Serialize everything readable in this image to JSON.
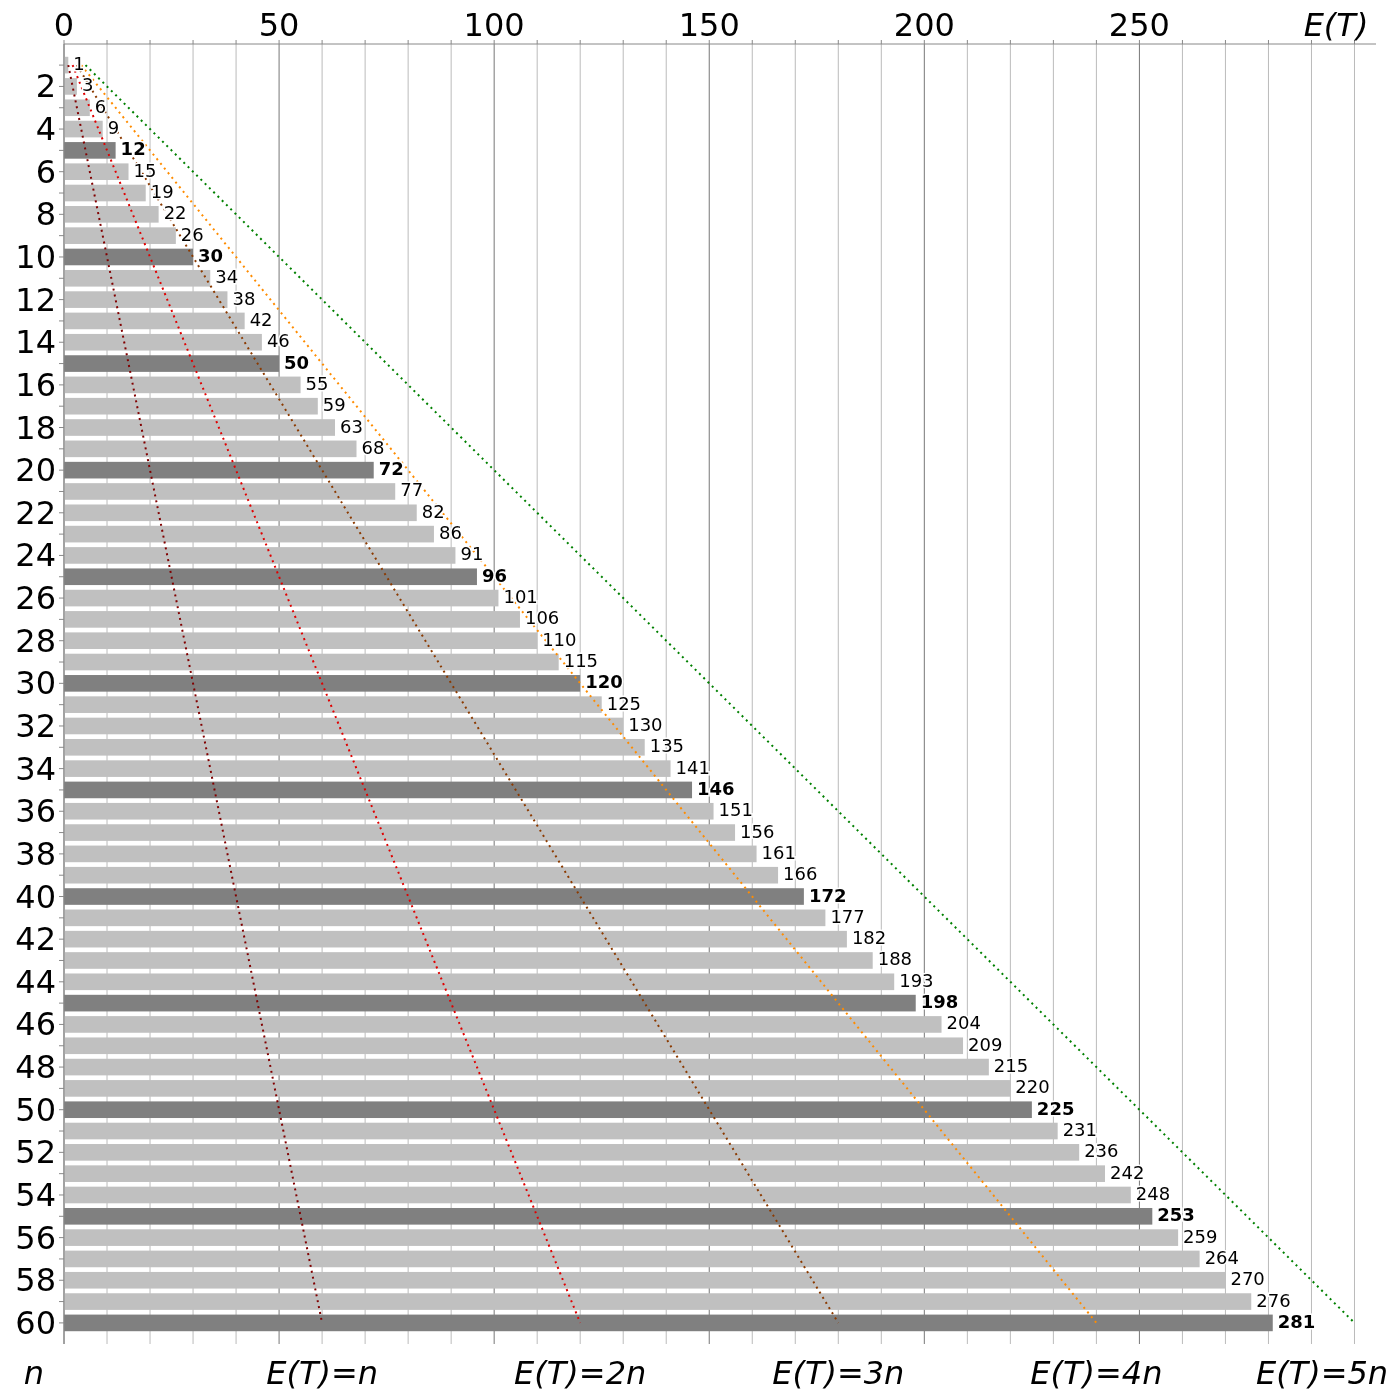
{
  "chart_data": {
    "type": "bar",
    "orientation": "horizontal",
    "xlabel": "E(T)",
    "ylabel": "n",
    "categories": [
      null,
      "2",
      null,
      "4",
      null,
      "6",
      null,
      "8",
      null,
      "10",
      null,
      "12",
      null,
      "14",
      null,
      "16",
      null,
      "18",
      null,
      "20",
      null,
      "22",
      null,
      "24",
      null,
      "26",
      null,
      "28",
      null,
      "30",
      null,
      "32",
      null,
      "34",
      null,
      "36",
      null,
      "38",
      null,
      "40",
      null,
      "42",
      null,
      "44",
      null,
      "46",
      null,
      "48",
      null,
      "50",
      null,
      "52",
      null,
      "54",
      null,
      "56",
      null,
      "58",
      null,
      "60"
    ],
    "values": [
      1,
      3,
      6,
      9,
      12,
      15,
      19,
      22,
      26,
      30,
      34,
      38,
      42,
      46,
      50,
      55,
      59,
      63,
      68,
      72,
      77,
      82,
      86,
      91,
      96,
      101,
      106,
      110,
      115,
      120,
      125,
      130,
      135,
      141,
      146,
      151,
      156,
      161,
      166,
      172,
      177,
      182,
      188,
      193,
      198,
      204,
      209,
      215,
      220,
      225,
      231,
      236,
      242,
      248,
      253,
      259,
      264,
      270,
      276,
      281
    ],
    "colors": [
      "#c0c0c0",
      "#c0c0c0",
      "#c0c0c0",
      "#c0c0c0",
      "#808080",
      "#c0c0c0",
      "#c0c0c0",
      "#c0c0c0",
      "#c0c0c0",
      "#808080",
      "#c0c0c0",
      "#c0c0c0",
      "#c0c0c0",
      "#c0c0c0",
      "#808080",
      "#c0c0c0",
      "#c0c0c0",
      "#c0c0c0",
      "#c0c0c0",
      "#808080",
      "#c0c0c0",
      "#c0c0c0",
      "#c0c0c0",
      "#c0c0c0",
      "#808080",
      "#c0c0c0",
      "#c0c0c0",
      "#c0c0c0",
      "#c0c0c0",
      "#808080",
      "#c0c0c0",
      "#c0c0c0",
      "#c0c0c0",
      "#c0c0c0",
      "#808080",
      "#c0c0c0",
      "#c0c0c0",
      "#c0c0c0",
      "#c0c0c0",
      "#808080",
      "#c0c0c0",
      "#c0c0c0",
      "#c0c0c0",
      "#c0c0c0",
      "#808080",
      "#c0c0c0",
      "#c0c0c0",
      "#c0c0c0",
      "#c0c0c0",
      "#808080",
      "#c0c0c0",
      "#c0c0c0",
      "#c0c0c0",
      "#c0c0c0",
      "#808080",
      "#c0c0c0",
      "#c0c0c0",
      "#c0c0c0",
      "#c0c0c0",
      "#808080"
    ],
    "value_labels": [
      "1",
      "3",
      "6",
      "9",
      "12",
      "15",
      "19",
      "22",
      "26",
      "30",
      "34",
      "38",
      "42",
      "46",
      "50",
      "55",
      "59",
      "63",
      "68",
      "72",
      "77",
      "82",
      "86",
      "91",
      "96",
      "101",
      "106",
      "110",
      "115",
      "120",
      "125",
      "130",
      "135",
      "141",
      "146",
      "151",
      "156",
      "161",
      "166",
      "172",
      "177",
      "182",
      "188",
      "193",
      "198",
      "204",
      "209",
      "215",
      "220",
      "225",
      "231",
      "236",
      "242",
      "248",
      "253",
      "259",
      "264",
      "270",
      "276",
      "281"
    ],
    "series": [
      {
        "type": "line",
        "name": "E(T)=n",
        "color": "#800000",
        "values": [
          1,
          2,
          3,
          4,
          5,
          6,
          7,
          8,
          9,
          10,
          11,
          12,
          13,
          14,
          15,
          16,
          17,
          18,
          19,
          20,
          21,
          22,
          23,
          24,
          25,
          26,
          27,
          28,
          29,
          30,
          31,
          32,
          33,
          34,
          35,
          36,
          37,
          38,
          39,
          40,
          41,
          42,
          43,
          44,
          45,
          46,
          47,
          48,
          49,
          50,
          51,
          52,
          53,
          54,
          55,
          56,
          57,
          58,
          59,
          60
        ]
      },
      {
        "type": "line",
        "name": "E(T)=2n",
        "color": "#e00000",
        "values": [
          2,
          4,
          6,
          8,
          10,
          12,
          14,
          16,
          18,
          20,
          22,
          24,
          26,
          28,
          30,
          32,
          34,
          36,
          38,
          40,
          42,
          44,
          46,
          48,
          50,
          52,
          54,
          56,
          58,
          60,
          62,
          64,
          66,
          68,
          70,
          72,
          74,
          76,
          78,
          80,
          82,
          84,
          86,
          88,
          90,
          92,
          94,
          96,
          98,
          100,
          102,
          104,
          106,
          108,
          110,
          112,
          114,
          116,
          118,
          120
        ]
      },
      {
        "type": "line",
        "name": "E(T)=3n",
        "color": "#8b3a00",
        "values": [
          3,
          6,
          9,
          12,
          15,
          18,
          21,
          24,
          27,
          30,
          33,
          36,
          39,
          42,
          45,
          48,
          51,
          54,
          57,
          60,
          63,
          66,
          69,
          72,
          75,
          78,
          81,
          84,
          87,
          90,
          93,
          96,
          99,
          102,
          105,
          108,
          111,
          114,
          117,
          120,
          123,
          126,
          129,
          132,
          135,
          138,
          141,
          144,
          147,
          150,
          153,
          156,
          159,
          162,
          165,
          168,
          171,
          174,
          177,
          180
        ]
      },
      {
        "type": "line",
        "name": "E(T)=4n",
        "color": "#ff8c00",
        "values": [
          4,
          8,
          12,
          16,
          20,
          24,
          28,
          32,
          36,
          40,
          44,
          48,
          52,
          56,
          60,
          64,
          68,
          72,
          76,
          80,
          84,
          88,
          92,
          96,
          100,
          104,
          108,
          112,
          116,
          120,
          124,
          128,
          132,
          136,
          140,
          144,
          148,
          152,
          156,
          160,
          164,
          168,
          172,
          176,
          180,
          184,
          188,
          192,
          196,
          200,
          204,
          208,
          212,
          216,
          220,
          224,
          228,
          232,
          236,
          240
        ]
      },
      {
        "type": "line",
        "name": "E(T)=5n",
        "color": "#008000",
        "values": [
          5,
          10,
          15,
          20,
          25,
          30,
          35,
          40,
          45,
          50,
          55,
          60,
          65,
          70,
          75,
          80,
          85,
          90,
          95,
          100,
          105,
          110,
          115,
          120,
          125,
          130,
          135,
          140,
          145,
          150,
          155,
          160,
          165,
          170,
          175,
          180,
          185,
          190,
          195,
          200,
          205,
          210,
          215,
          220,
          225,
          230,
          235,
          240,
          245,
          250,
          255,
          260,
          265,
          270,
          275,
          280,
          285,
          290,
          295,
          300
        ]
      }
    ],
    "line_style": "dotted",
    "grid": "x",
    "xlim": [
      0,
      305
    ],
    "xticks": [
      0,
      {
        "value": 10,
        "label": null
      },
      {
        "value": 20,
        "label": null
      },
      {
        "value": 30,
        "label": null
      },
      {
        "value": 40,
        "label": null
      },
      50,
      {
        "value": 60,
        "label": null
      },
      {
        "value": 70,
        "label": null
      },
      {
        "value": 80,
        "label": null
      },
      {
        "value": 90,
        "label": null
      },
      100,
      {
        "value": 110,
        "label": null
      },
      {
        "value": 120,
        "label": null
      },
      {
        "value": 130,
        "label": null
      },
      {
        "value": 140,
        "label": null
      },
      150,
      {
        "value": 160,
        "label": null
      },
      {
        "value": 170,
        "label": null
      },
      {
        "value": 180,
        "label": null
      },
      {
        "value": 190,
        "label": null
      },
      200,
      {
        "value": 210,
        "label": null
      },
      {
        "value": 220,
        "label": null
      },
      {
        "value": 230,
        "label": null
      },
      {
        "value": 240,
        "label": null
      },
      250,
      {
        "value": 260,
        "label": null
      },
      {
        "value": 270,
        "label": null
      },
      {
        "value": 280,
        "label": null
      },
      {
        "value": 290,
        "label": null
      },
      {
        "value": 300,
        "label": null
      }
    ]
  }
}
